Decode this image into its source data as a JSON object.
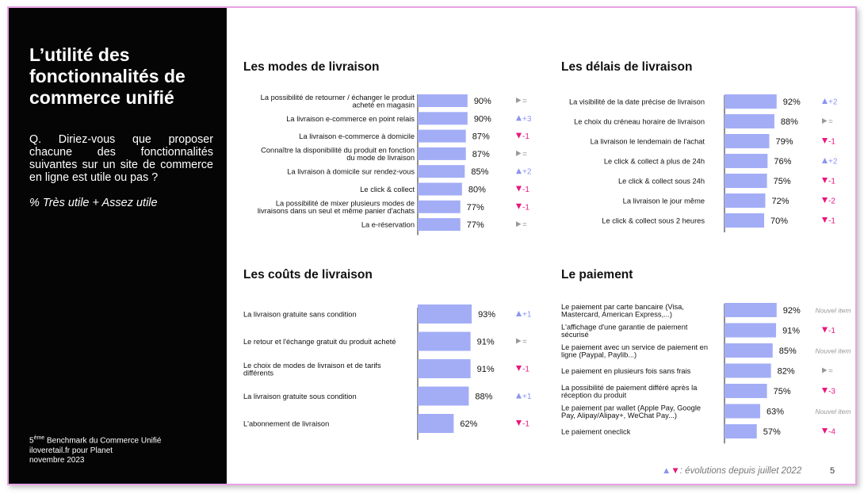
{
  "sidebar": {
    "title_lines": [
      "L’utilité des",
      "fonctionnalités de",
      "commerce unifié"
    ],
    "question": "Q. Diriez-vous que proposer chacune des fonctionnalités suivantes sur un site de commerce en ligne est utile ou pas ?",
    "note": "% Très utile + Assez utile",
    "source_ordinal": "5",
    "source_sup": "ème",
    "source_line1_rest": " Benchmark du Commerce Unifié",
    "source_line2": "iloveretail.fr pour Planet",
    "source_line3": "novembre 2023"
  },
  "colors": {
    "bar": "#a3adf6",
    "up": "#8a95f0",
    "down": "#e8177f",
    "neutral": "#999999",
    "axis": "#222222",
    "new_item": "#999999"
  },
  "footer": {
    "up_icon": "▲",
    "down_icon": "▼",
    "legend": ": évolutions depuis juillet 2022",
    "page": "5"
  },
  "chart_data": [
    {
      "type": "bar",
      "title": "Les modes de livraison",
      "categories": [
        "La possibilité de retourner / échanger le produit\nacheté en magasin",
        "La livraison e-commerce en point relais",
        "La livraison e-commerce à domicile",
        "Connaître la disponibilité du produit en fonction\ndu mode de livraison",
        "La livraison à domicile sur rendez-vous",
        "Le click & collect",
        "La possibilité de mixer plusieurs modes de\nlivraisons dans un seul et même panier d'achats",
        "La e-réservation"
      ],
      "values": [
        90,
        90,
        87,
        87,
        85,
        80,
        77,
        77
      ],
      "value_labels": [
        "90%",
        "90%",
        "87%",
        "87%",
        "85%",
        "80%",
        "77%",
        "77%"
      ],
      "changes": [
        {
          "dir": "neutral",
          "text": "="
        },
        {
          "dir": "up",
          "text": "+3"
        },
        {
          "dir": "down",
          "text": "-1"
        },
        {
          "dir": "neutral",
          "text": "="
        },
        {
          "dir": "up",
          "text": "+2"
        },
        {
          "dir": "down",
          "text": "-1"
        },
        {
          "dir": "down",
          "text": "-1"
        },
        {
          "dir": "neutral",
          "text": "="
        }
      ]
    },
    {
      "type": "bar",
      "title": "Les délais de livraison",
      "categories": [
        "La visibilité de la date précise de livraison",
        "Le choix du créneau horaire de livraison",
        "La livraison le lendemain de l'achat",
        "Le click & collect à plus de 24h",
        "Le click & collect sous 24h",
        "La livraison le jour même",
        "Le click & collect sous 2 heures"
      ],
      "values": [
        92,
        88,
        79,
        76,
        75,
        72,
        70
      ],
      "value_labels": [
        "92%",
        "88%",
        "79%",
        "76%",
        "75%",
        "72%",
        "70%"
      ],
      "changes": [
        {
          "dir": "up",
          "text": "+2"
        },
        {
          "dir": "neutral",
          "text": "="
        },
        {
          "dir": "down",
          "text": "-1"
        },
        {
          "dir": "up",
          "text": "+2"
        },
        {
          "dir": "down",
          "text": "-1"
        },
        {
          "dir": "down",
          "text": "-2"
        },
        {
          "dir": "down",
          "text": "-1"
        }
      ]
    },
    {
      "type": "bar",
      "title": "Les coûts de livraison",
      "categories": [
        "La livraison gratuite sans condition",
        "Le retour et l'échange gratuit du produit acheté",
        "Le choix de modes de livraison et de tarifs\ndifférents",
        "La livraison gratuite sous condition",
        "L'abonnement de livraison"
      ],
      "values": [
        93,
        91,
        91,
        88,
        62
      ],
      "value_labels": [
        "93%",
        "91%",
        "91%",
        "88%",
        "62%"
      ],
      "changes": [
        {
          "dir": "up",
          "text": "+1"
        },
        {
          "dir": "neutral",
          "text": "="
        },
        {
          "dir": "down",
          "text": "-1"
        },
        {
          "dir": "up",
          "text": "+1"
        },
        {
          "dir": "down",
          "text": "-1"
        }
      ]
    },
    {
      "type": "bar",
      "title": "Le paiement",
      "categories": [
        "Le paiement par carte bancaire (Visa,\nMastercard, American Express,...)",
        "L'affichage d'une garantie de paiement\nsécurisé",
        "Le paiement avec un service de paiement en\nligne (Paypal, Paylib...)",
        "Le paiement en plusieurs fois sans frais",
        "La possibilité de paiement différé après la\nréception du produit",
        "Le paiement par wallet (Apple Pay, Google\nPay, Alipay/Alipay+, WeChat Pay...)",
        "Le paiement oneclick"
      ],
      "values": [
        92,
        91,
        85,
        82,
        75,
        63,
        57
      ],
      "value_labels": [
        "92%",
        "91%",
        "85%",
        "82%",
        "75%",
        "63%",
        "57%"
      ],
      "changes": [
        {
          "dir": "new",
          "text": "Nouvel item"
        },
        {
          "dir": "down",
          "text": "-1"
        },
        {
          "dir": "new",
          "text": "Nouvel item"
        },
        {
          "dir": "neutral",
          "text": "="
        },
        {
          "dir": "down",
          "text": "-3"
        },
        {
          "dir": "new",
          "text": "Nouvel item"
        },
        {
          "dir": "down",
          "text": "-4"
        }
      ]
    }
  ]
}
